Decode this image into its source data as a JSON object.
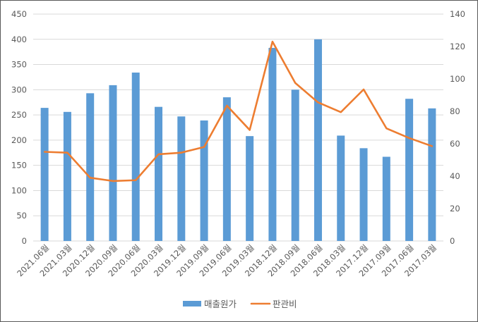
{
  "chart_data": {
    "type": "bar",
    "categories": [
      "2021.06월",
      "2021.03월",
      "2020.12월",
      "2020.09월",
      "2020.06월",
      "2020.03월",
      "2019.12월",
      "2019.09월",
      "2019.06월",
      "2019.03월",
      "2018.12월",
      "2018.09월",
      "2018.06월",
      "2018.03월",
      "2017.12월",
      "2017.09월",
      "2017.06월",
      "2017.03월"
    ],
    "series": [
      {
        "name": "매출원가",
        "kind": "bar",
        "axis": "left",
        "color": "#5b9bd5",
        "values": [
          264,
          256,
          293,
          309,
          334,
          266,
          247,
          239,
          285,
          208,
          383,
          300,
          400,
          209,
          184,
          167,
          282,
          263
        ]
      },
      {
        "name": "판관비",
        "kind": "line",
        "axis": "right",
        "color": "#ed7d31",
        "values": [
          55,
          54.5,
          39,
          37,
          37.5,
          53.5,
          54.5,
          58,
          83.5,
          68.5,
          123,
          97.5,
          85.5,
          79.5,
          93.5,
          69.5,
          63.5,
          58.5
        ]
      }
    ],
    "y_left": {
      "min": 0,
      "max": 450,
      "step": 50,
      "ticks": [
        "0",
        "50",
        "100",
        "150",
        "200",
        "250",
        "300",
        "350",
        "400",
        "450"
      ]
    },
    "y_right": {
      "min": 0,
      "max": 140,
      "step": 20,
      "ticks": [
        "0",
        "20",
        "40",
        "60",
        "80",
        "100",
        "120",
        "140"
      ]
    },
    "grid": true,
    "legend": "bottom",
    "title": "",
    "xlabel": "",
    "ylabel": ""
  }
}
